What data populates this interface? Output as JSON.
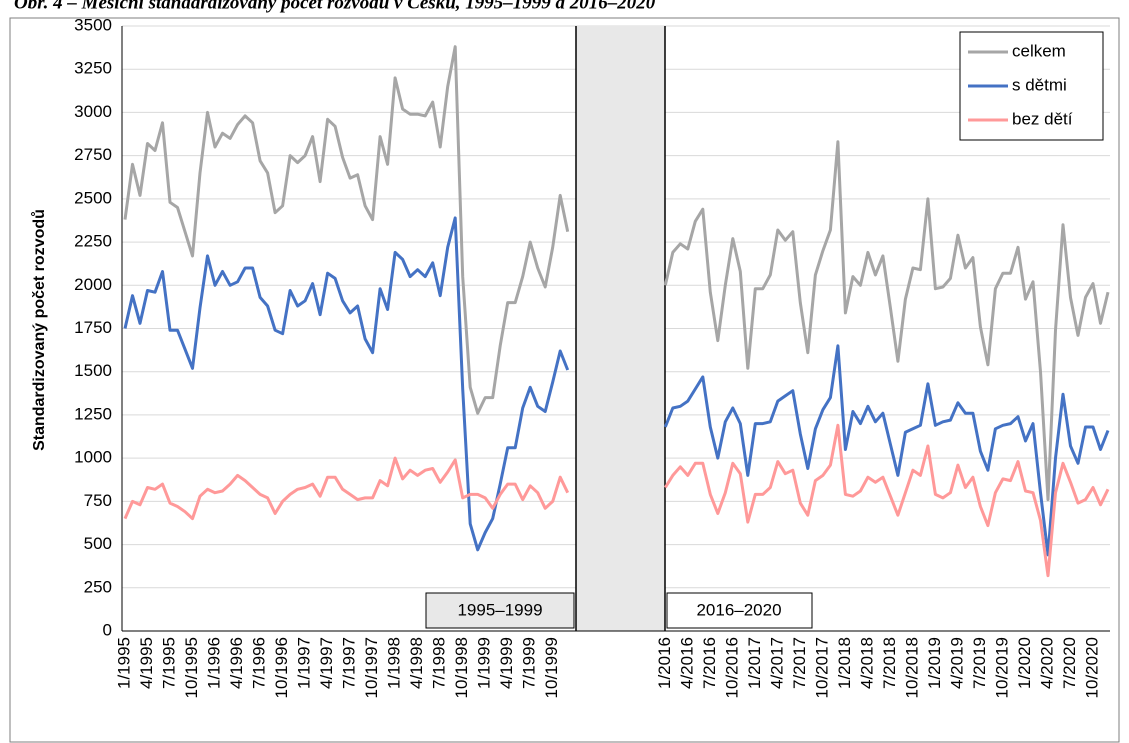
{
  "chart_data": {
    "type": "line",
    "title": "Obr. 4 – Měsíční standardizovaný počet rozvodů v Česku, 1995–1999 a 2016–2020",
    "y_label": "Standardizovaný počet rozvodů",
    "annotations": [
      "1995–1999",
      "2016–2020"
    ],
    "categories": [
      "1/1995",
      null,
      null,
      "4/1995",
      null,
      null,
      "7/1995",
      null,
      null,
      "10/1995",
      null,
      null,
      "1/1996",
      null,
      null,
      "4/1996",
      null,
      null,
      "7/1996",
      null,
      null,
      "10/1996",
      null,
      null,
      "1/1997",
      null,
      null,
      "4/1997",
      null,
      null,
      "7/1997",
      null,
      null,
      "10/1997",
      null,
      null,
      "1/1998",
      null,
      null,
      "4/1998",
      null,
      null,
      "7/1998",
      null,
      null,
      "10/1998",
      null,
      null,
      "1/1999",
      null,
      null,
      "4/1999",
      null,
      null,
      "7/1999",
      null,
      null,
      "10/1999",
      null,
      null,
      null,
      null,
      null,
      null,
      null,
      null,
      null,
      null,
      null,
      null,
      null,
      null,
      "1/2016",
      null,
      null,
      "4/2016",
      null,
      null,
      "7/2016",
      null,
      null,
      "10/2016",
      null,
      null,
      "1/2017",
      null,
      null,
      "4/2017",
      null,
      null,
      "7/2017",
      null,
      null,
      "10/2017",
      null,
      null,
      "1/2018",
      null,
      null,
      "4/2018",
      null,
      null,
      "7/2018",
      null,
      null,
      "10/2018",
      null,
      null,
      "1/2019",
      null,
      null,
      "4/2019",
      null,
      null,
      "7/2019",
      null,
      null,
      "10/2019",
      null,
      null,
      "1/2020",
      null,
      null,
      "4/2020",
      null,
      null,
      "7/2020",
      null,
      null,
      "10/2020",
      null,
      null
    ],
    "series": [
      {
        "name": "celkem",
        "color": "#a6a6a6",
        "values": [
          2380,
          2700,
          2520,
          2820,
          2780,
          2940,
          2480,
          2450,
          2310,
          2170,
          2650,
          3000,
          2800,
          2880,
          2850,
          2930,
          2980,
          2940,
          2720,
          2650,
          2420,
          2460,
          2750,
          2710,
          2750,
          2860,
          2600,
          2960,
          2920,
          2740,
          2620,
          2640,
          2460,
          2380,
          2860,
          2700,
          3200,
          3020,
          2990,
          2990,
          2980,
          3060,
          2800,
          3150,
          3380,
          2050,
          1410,
          1260,
          1350,
          1350,
          1650,
          1900,
          1900,
          2050,
          2250,
          2100,
          1990,
          2220,
          2520,
          2310,
          null,
          null,
          null,
          null,
          null,
          null,
          null,
          null,
          null,
          null,
          null,
          null,
          2000,
          2190,
          2240,
          2210,
          2370,
          2440,
          1960,
          1680,
          2000,
          2270,
          2080,
          1520,
          1980,
          1980,
          2060,
          2320,
          2260,
          2310,
          1900,
          1610,
          2060,
          2200,
          2320,
          2830,
          1840,
          2050,
          2000,
          2190,
          2060,
          2170,
          1870,
          1560,
          1920,
          2100,
          2090,
          2500,
          1980,
          1990,
          2040,
          2290,
          2100,
          2160,
          1760,
          1540,
          1980,
          2070,
          2070,
          2220,
          1920,
          2020,
          1500,
          760,
          1740,
          2350,
          1930,
          1710,
          1930,
          2010,
          1780,
          1960
        ]
      },
      {
        "name": "s dětmi",
        "color": "#4472c4",
        "values": [
          1750,
          1940,
          1780,
          1970,
          1960,
          2080,
          1740,
          1740,
          1630,
          1520,
          1870,
          2170,
          2000,
          2080,
          2000,
          2020,
          2100,
          2100,
          1930,
          1880,
          1740,
          1720,
          1970,
          1880,
          1910,
          2010,
          1830,
          2070,
          2040,
          1910,
          1840,
          1880,
          1690,
          1610,
          1980,
          1860,
          2190,
          2150,
          2050,
          2090,
          2050,
          2130,
          1940,
          2220,
          2390,
          1400,
          620,
          470,
          570,
          650,
          850,
          1060,
          1060,
          1290,
          1410,
          1300,
          1270,
          1440,
          1620,
          1510,
          null,
          null,
          null,
          null,
          null,
          null,
          null,
          null,
          null,
          null,
          null,
          null,
          1180,
          1290,
          1300,
          1330,
          1400,
          1470,
          1180,
          1000,
          1210,
          1290,
          1200,
          900,
          1200,
          1200,
          1210,
          1330,
          1360,
          1390,
          1140,
          940,
          1170,
          1280,
          1350,
          1650,
          1050,
          1270,
          1200,
          1300,
          1210,
          1260,
          1080,
          900,
          1150,
          1170,
          1190,
          1430,
          1190,
          1210,
          1220,
          1320,
          1260,
          1260,
          1040,
          930,
          1170,
          1190,
          1200,
          1240,
          1100,
          1200,
          800,
          440,
          1000,
          1370,
          1070,
          970,
          1180,
          1180,
          1050,
          1160
        ]
      },
      {
        "name": "bez dětí",
        "color": "#ff9999",
        "values": [
          650,
          750,
          730,
          830,
          820,
          850,
          740,
          720,
          690,
          650,
          780,
          820,
          800,
          810,
          850,
          900,
          870,
          830,
          790,
          770,
          680,
          750,
          790,
          820,
          830,
          850,
          780,
          890,
          890,
          820,
          790,
          760,
          770,
          770,
          870,
          840,
          1000,
          880,
          930,
          900,
          930,
          940,
          860,
          920,
          990,
          770,
          790,
          790,
          770,
          710,
          790,
          850,
          850,
          760,
          840,
          800,
          710,
          750,
          890,
          800,
          null,
          null,
          null,
          null,
          null,
          null,
          null,
          null,
          null,
          null,
          null,
          null,
          830,
          900,
          950,
          900,
          970,
          970,
          790,
          680,
          800,
          970,
          910,
          630,
          790,
          790,
          830,
          980,
          910,
          930,
          740,
          670,
          870,
          900,
          960,
          1190,
          790,
          780,
          810,
          890,
          860,
          890,
          780,
          670,
          800,
          930,
          900,
          1070,
          790,
          770,
          800,
          960,
          830,
          890,
          720,
          610,
          800,
          880,
          870,
          980,
          810,
          800,
          640,
          320,
          800,
          970,
          860,
          740,
          760,
          830,
          730,
          820
        ]
      }
    ],
    "ylim": [
      0,
      3500
    ],
    "yticks": [
      0,
      250,
      500,
      750,
      1000,
      1250,
      1500,
      1750,
      2000,
      2250,
      2500,
      2750,
      3000,
      3250,
      3500
    ],
    "grid": true,
    "legend": "top-right"
  }
}
